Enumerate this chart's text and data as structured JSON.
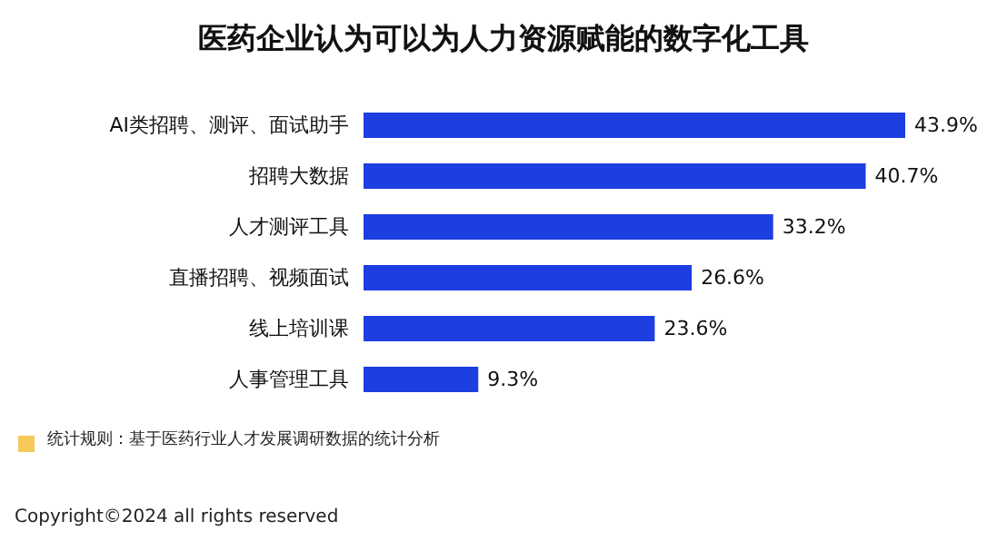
{
  "chart_data": {
    "type": "bar",
    "orientation": "horizontal",
    "title": "医药企业认为可以为人力资源赋能的数字化工具",
    "categories": [
      "AI类招聘、测评、面试助手",
      "招聘大数据",
      "人才测评工具",
      "直播招聘、视频面试",
      "线上培训课",
      "人事管理工具"
    ],
    "values": [
      43.9,
      40.7,
      33.2,
      26.6,
      23.6,
      9.3
    ],
    "value_labels": [
      "43.9%",
      "40.7%",
      "33.2%",
      "26.6%",
      "23.6%",
      "9.3%"
    ],
    "color": "#1d3ee0",
    "annotations": [
      "统计规则：基于医药行业人才发展调研数据的统计分析",
      "Copyright©2024 all rights reserved"
    ]
  }
}
